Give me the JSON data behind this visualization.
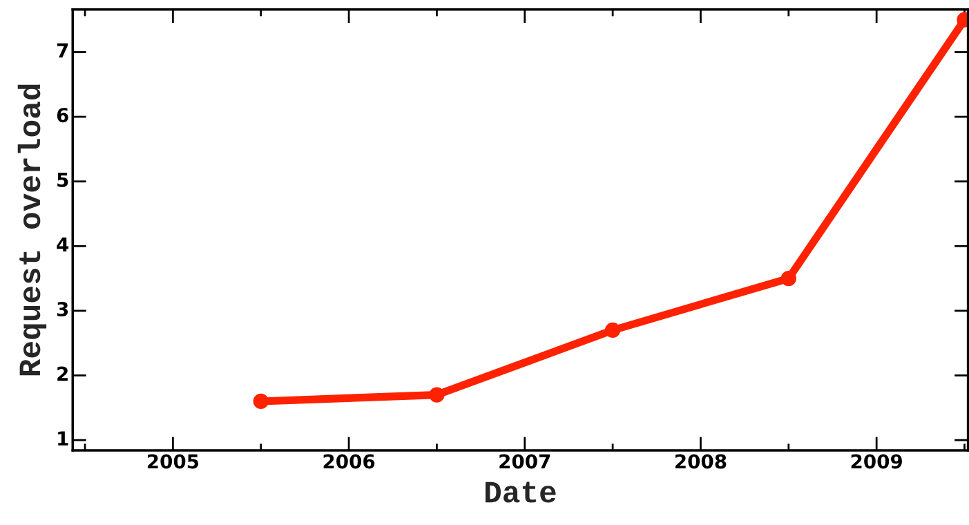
{
  "chart_data": {
    "type": "line",
    "xlabel": "Date",
    "ylabel": "Request overload",
    "x": [
      2005.5,
      2006.5,
      2007.5,
      2008.5,
      2009.5
    ],
    "series": [
      {
        "color": "#ff2200",
        "values": [
          1.6,
          1.7,
          2.7,
          3.5,
          7.5
        ]
      }
    ],
    "xlim": [
      2004.43,
      2009.52
    ],
    "xticks": [
      {
        "value": 2004.5,
        "label": null
      },
      2005,
      {
        "value": 2005.5,
        "label": null
      },
      2006,
      {
        "value": 2006.5,
        "label": null
      },
      2007,
      {
        "value": 2007.5,
        "label": null
      },
      2008,
      {
        "value": 2008.5,
        "label": null
      },
      2009,
      {
        "value": 2009.5,
        "label": null
      }
    ],
    "ylim": [
      0.84,
      7.66
    ],
    "yticks": [
      1,
      2,
      3,
      4,
      5,
      6,
      7
    ],
    "marker": "circle",
    "line_style": "solid",
    "grid": false
  }
}
